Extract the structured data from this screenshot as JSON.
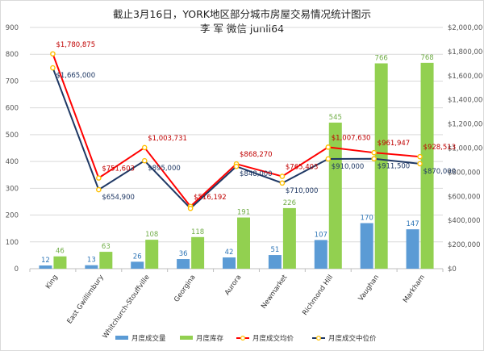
{
  "title_line1": "截止3月16日，YORK地区部分城市房屋交易情况统计图示",
  "title_line2": "李 军  微信 junli64",
  "colors": {
    "sales": "#5b9bd5",
    "inventory": "#92d050",
    "avg_price": "#ff0000",
    "median_price": "#1f3864",
    "marker_avg": "#ffc000",
    "grid": "#d9d9d9",
    "label_avg": "#c00000",
    "label_median": "#1f3864",
    "label_sales": "#2e75b6",
    "label_inventory": "#70ad47"
  },
  "chart_data": {
    "type": "bar",
    "categories": [
      "King",
      "East Gwillimbury",
      "Whitchurch-Stouffville",
      "Georgina",
      "Aurora",
      "Newmarket",
      "Richmond Hill",
      "Vaughan",
      "Markham"
    ],
    "left_axis": {
      "min": 0,
      "max": 900,
      "step": 100,
      "ticks": [
        "0",
        "100",
        "200",
        "300",
        "400",
        "500",
        "600",
        "700",
        "800",
        "900"
      ]
    },
    "right_axis": {
      "min": 0,
      "max": 2000000,
      "step": 200000,
      "ticks": [
        "$0",
        "$200,000",
        "$400,000",
        "$600,000",
        "$800,000",
        "$1,000,000",
        "$1,200,000",
        "$1,400,000",
        "$1,600,000",
        "$1,800,000",
        "$2,000,000"
      ]
    },
    "grid": true,
    "legend_position": "bottom",
    "series": [
      {
        "name": "月度成交量",
        "kind": "bar",
        "axis": "left",
        "values": [
          12,
          13,
          26,
          36,
          42,
          51,
          107,
          170,
          147
        ],
        "labels": [
          "12",
          "13",
          "26",
          "36",
          "42",
          "51",
          "107",
          "170",
          "147"
        ]
      },
      {
        "name": "月度库存",
        "kind": "bar",
        "axis": "left",
        "values": [
          46,
          63,
          108,
          118,
          191,
          226,
          545,
          766,
          768
        ],
        "labels": [
          "46",
          "63",
          "108",
          "118",
          "191",
          "226",
          "545",
          "766",
          "768"
        ]
      },
      {
        "name": "月度成交均价",
        "kind": "line",
        "axis": "right",
        "values": [
          1780875,
          751603,
          1003731,
          516192,
          868270,
          765403,
          1007630,
          961947,
          928513
        ],
        "labels": [
          "$1,780,875",
          "$751,603",
          "$1,003,731",
          "$516,192",
          "$868,270",
          "$765,403",
          "$1,007,630",
          "$961,947",
          "$928,513"
        ]
      },
      {
        "name": "月度成交中位价",
        "kind": "line",
        "axis": "right",
        "values": [
          1665000,
          654900,
          895000,
          500000,
          848000,
          710000,
          910000,
          911500,
          870000
        ],
        "labels": [
          "$1,665,000",
          "$654,900",
          "$895,000",
          "",
          "$848,000",
          "$710,000",
          "$910,000",
          "$911,500",
          "$870,000"
        ]
      }
    ]
  }
}
